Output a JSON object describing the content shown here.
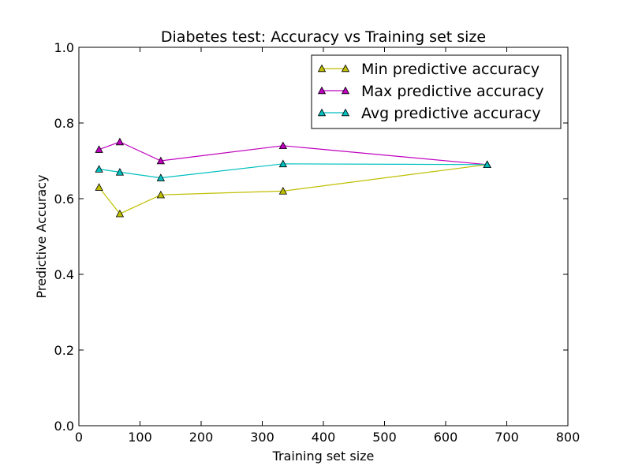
{
  "chart_data": {
    "type": "line",
    "title": "Diabetes test: Accuracy vs Training set size",
    "xlabel": "Training set size",
    "ylabel": "Predictive Accuracy",
    "xlim": [
      0,
      800
    ],
    "ylim": [
      0.0,
      1.0
    ],
    "xticks": [
      "0",
      "100",
      "200",
      "300",
      "400",
      "500",
      "600",
      "700",
      "800"
    ],
    "yticks": [
      "0.0",
      "0.2",
      "0.4",
      "0.6",
      "0.8",
      "1.0"
    ],
    "grid": false,
    "legend_position": "top-right",
    "x": [
      33,
      67,
      134,
      334,
      668
    ],
    "series": [
      {
        "name": "Min predictive accuracy",
        "color": "#bfbf00",
        "marker": "triangle",
        "values": [
          0.63,
          0.56,
          0.61,
          0.62,
          0.69
        ]
      },
      {
        "name": "Max predictive accuracy",
        "color": "#bf00bf",
        "marker": "triangle",
        "values": [
          0.73,
          0.75,
          0.7,
          0.74,
          0.69
        ]
      },
      {
        "name": "Avg predictive accuracy",
        "color": "#00bfbf",
        "marker": "triangle",
        "values": [
          0.678,
          0.67,
          0.655,
          0.692,
          0.69
        ]
      }
    ]
  }
}
